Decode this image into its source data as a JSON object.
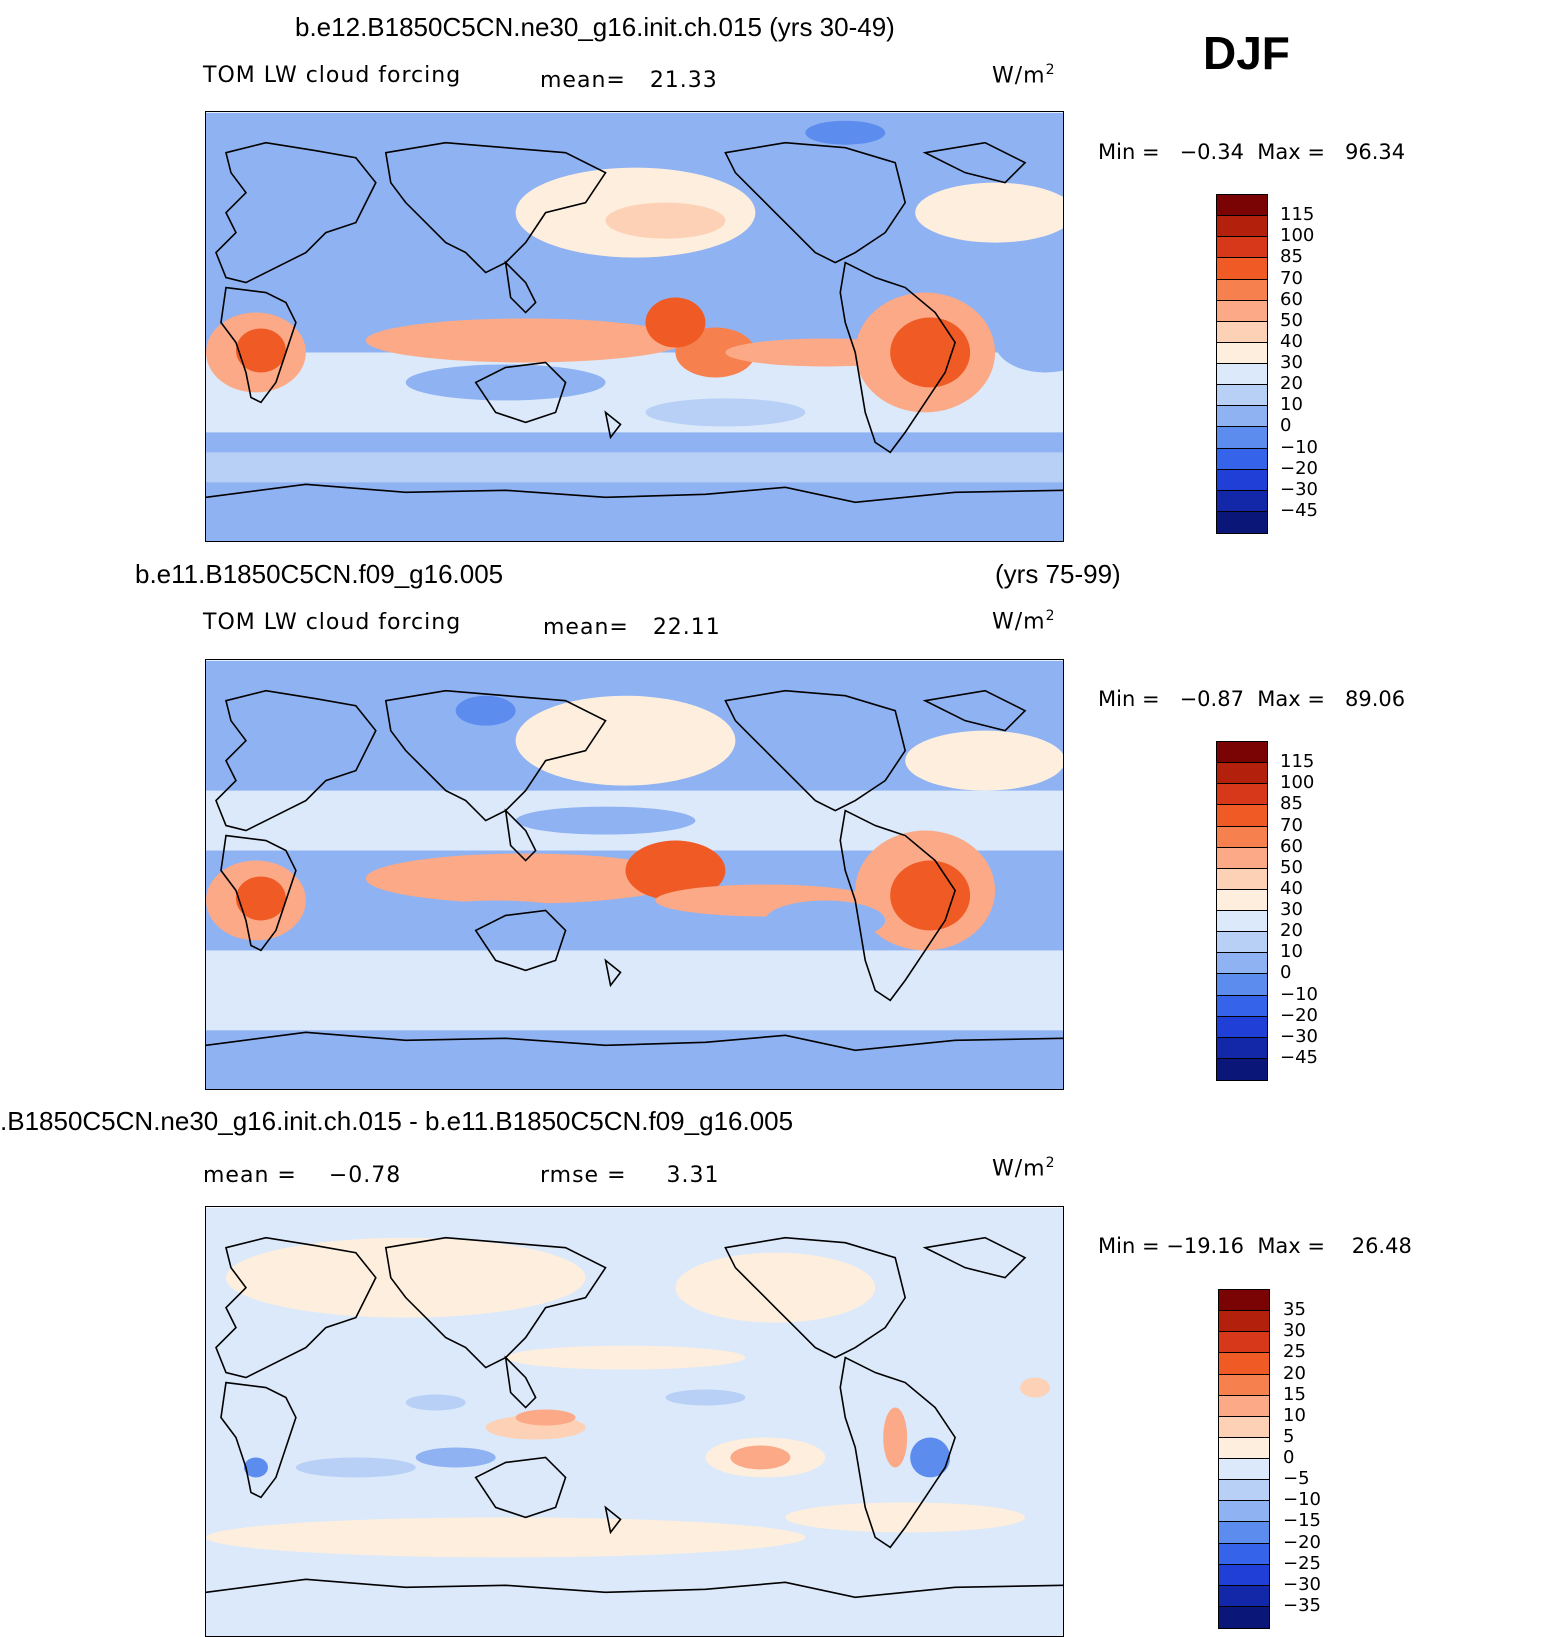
{
  "chart_data": [
    {
      "type": "heatmap",
      "panel": "top",
      "title": "b.e12.B1850C5CN.ne30_g16.init.ch.015 (yrs 30-49)",
      "variable": "TOM LW cloud forcing",
      "mean_label": "mean=",
      "mean": "21.33",
      "units_base": "W/m",
      "units_sup": "2",
      "min_label": "Min =",
      "min": "−0.34",
      "max_label": "Max =",
      "max": "96.34",
      "colorbar_labels": [
        "115",
        "100",
        "85",
        "70",
        "60",
        "50",
        "40",
        "30",
        "20",
        "10",
        "0",
        "−10",
        "−20",
        "−30",
        "−45"
      ],
      "colorbar_colors": [
        "#7a0403",
        "#b3200c",
        "#d8381a",
        "#f05a24",
        "#f7804f",
        "#fba987",
        "#fdd1b5",
        "#fdeede",
        "#dbe9fa",
        "#b8d0f6",
        "#8fb2f2",
        "#5c8cee",
        "#3563ea",
        "#1f3fd6",
        "#1228a8",
        "#0a1678"
      ]
    },
    {
      "type": "heatmap",
      "panel": "middle",
      "title_left": "b.e11.B1850C5CN.f09_g16.005",
      "title_right": "(yrs 75-99)",
      "variable": "TOM LW cloud forcing",
      "mean_label": "mean=",
      "mean": "22.11",
      "units_base": "W/m",
      "units_sup": "2",
      "min_label": "Min =",
      "min": "−0.87",
      "max_label": "Max =",
      "max": "89.06",
      "colorbar_labels": [
        "115",
        "100",
        "85",
        "70",
        "60",
        "50",
        "40",
        "30",
        "20",
        "10",
        "0",
        "−10",
        "−20",
        "−30",
        "−45"
      ],
      "colorbar_colors": [
        "#7a0403",
        "#b3200c",
        "#d8381a",
        "#f05a24",
        "#f7804f",
        "#fba987",
        "#fdd1b5",
        "#fdeede",
        "#dbe9fa",
        "#b8d0f6",
        "#8fb2f2",
        "#5c8cee",
        "#3563ea",
        "#1f3fd6",
        "#1228a8",
        "#0a1678"
      ]
    },
    {
      "type": "heatmap",
      "panel": "difference",
      "title": ".B1850C5CN.ne30_g16.init.ch.015 - b.e11.B1850C5CN.f09_g16.005",
      "mean_label": "mean =",
      "mean": "−0.78",
      "rmse_label": "rmse =",
      "rmse": "3.31",
      "units_base": "W/m",
      "units_sup": "2",
      "min_label": "Min =",
      "min": "−19.16",
      "max_label": "Max =",
      "max": "26.48",
      "colorbar_labels": [
        "35",
        "30",
        "25",
        "20",
        "15",
        "10",
        "5",
        "0",
        "−5",
        "−10",
        "−15",
        "−20",
        "−25",
        "−30",
        "−35"
      ],
      "colorbar_colors": [
        "#7a0403",
        "#b3200c",
        "#d8381a",
        "#f05a24",
        "#f7804f",
        "#fba987",
        "#fdd1b5",
        "#fdeede",
        "#dbe9fa",
        "#b8d0f6",
        "#8fb2f2",
        "#5c8cee",
        "#3563ea",
        "#1f3fd6",
        "#1228a8",
        "#0a1678"
      ]
    }
  ],
  "season": "DJF"
}
